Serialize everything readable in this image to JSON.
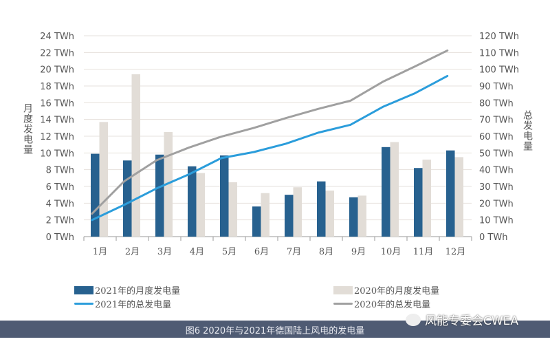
{
  "chart_data": {
    "type": "bar",
    "categories": [
      "1月",
      "2月",
      "3月",
      "4月",
      "5月",
      "6月",
      "7月",
      "8月",
      "9月",
      "10月",
      "11月",
      "12月"
    ],
    "left_axis": {
      "label": "月度发电量",
      "range": [
        0,
        24
      ],
      "ticks": [
        "0 TWh",
        "2 TWh",
        "4 TWh",
        "6 TWh",
        "8 TWh",
        "10 TWh",
        "12 TWh",
        "14 TWh",
        "16 TWh",
        "18 TWh",
        "20 TWh",
        "22 TWh",
        "24 TWh"
      ]
    },
    "right_axis": {
      "label": "总发电量",
      "range": [
        0,
        120
      ],
      "ticks": [
        "0 TWh",
        "10 TWh",
        "20 TWh",
        "30 TWh",
        "40 TWh",
        "50 TWh",
        "60 TWh",
        "70 TWh",
        "80 TWh",
        "90 TWh",
        "100 TWh",
        "110 TWh",
        "120 TWh"
      ]
    },
    "grid": true,
    "legend_placement": "bottom",
    "series": [
      {
        "name": "2021年的月度发电量",
        "type": "bar",
        "axis": "left",
        "color": "#27618f",
        "values": [
          9.9,
          9.1,
          9.8,
          8.4,
          9.7,
          3.6,
          5.0,
          6.6,
          4.7,
          10.7,
          8.2,
          10.3
        ]
      },
      {
        "name": "2020年的月度发电量",
        "type": "bar",
        "axis": "left",
        "color": "#e2ddd7",
        "values": [
          13.7,
          19.4,
          12.5,
          7.6,
          6.5,
          5.2,
          5.9,
          5.5,
          4.9,
          11.3,
          9.2,
          9.5
        ]
      },
      {
        "name": "2021年的总发电量",
        "type": "line",
        "axis": "right",
        "color": "#2b9ddb",
        "values": [
          9.9,
          19.0,
          28.8,
          37.2,
          46.9,
          50.5,
          55.5,
          62.1,
          66.8,
          77.5,
          85.7,
          96.0
        ]
      },
      {
        "name": "2020年的总发电量",
        "type": "line",
        "axis": "right",
        "color": "#a0a0a0",
        "values": [
          13.7,
          33.1,
          45.6,
          53.2,
          59.7,
          64.9,
          70.8,
          76.3,
          81.2,
          92.5,
          101.7,
          111.2
        ]
      }
    ]
  },
  "caption": "图6 2020年与2021年德国陆上风电的发电量",
  "watermark": "风能专委会CWEA"
}
